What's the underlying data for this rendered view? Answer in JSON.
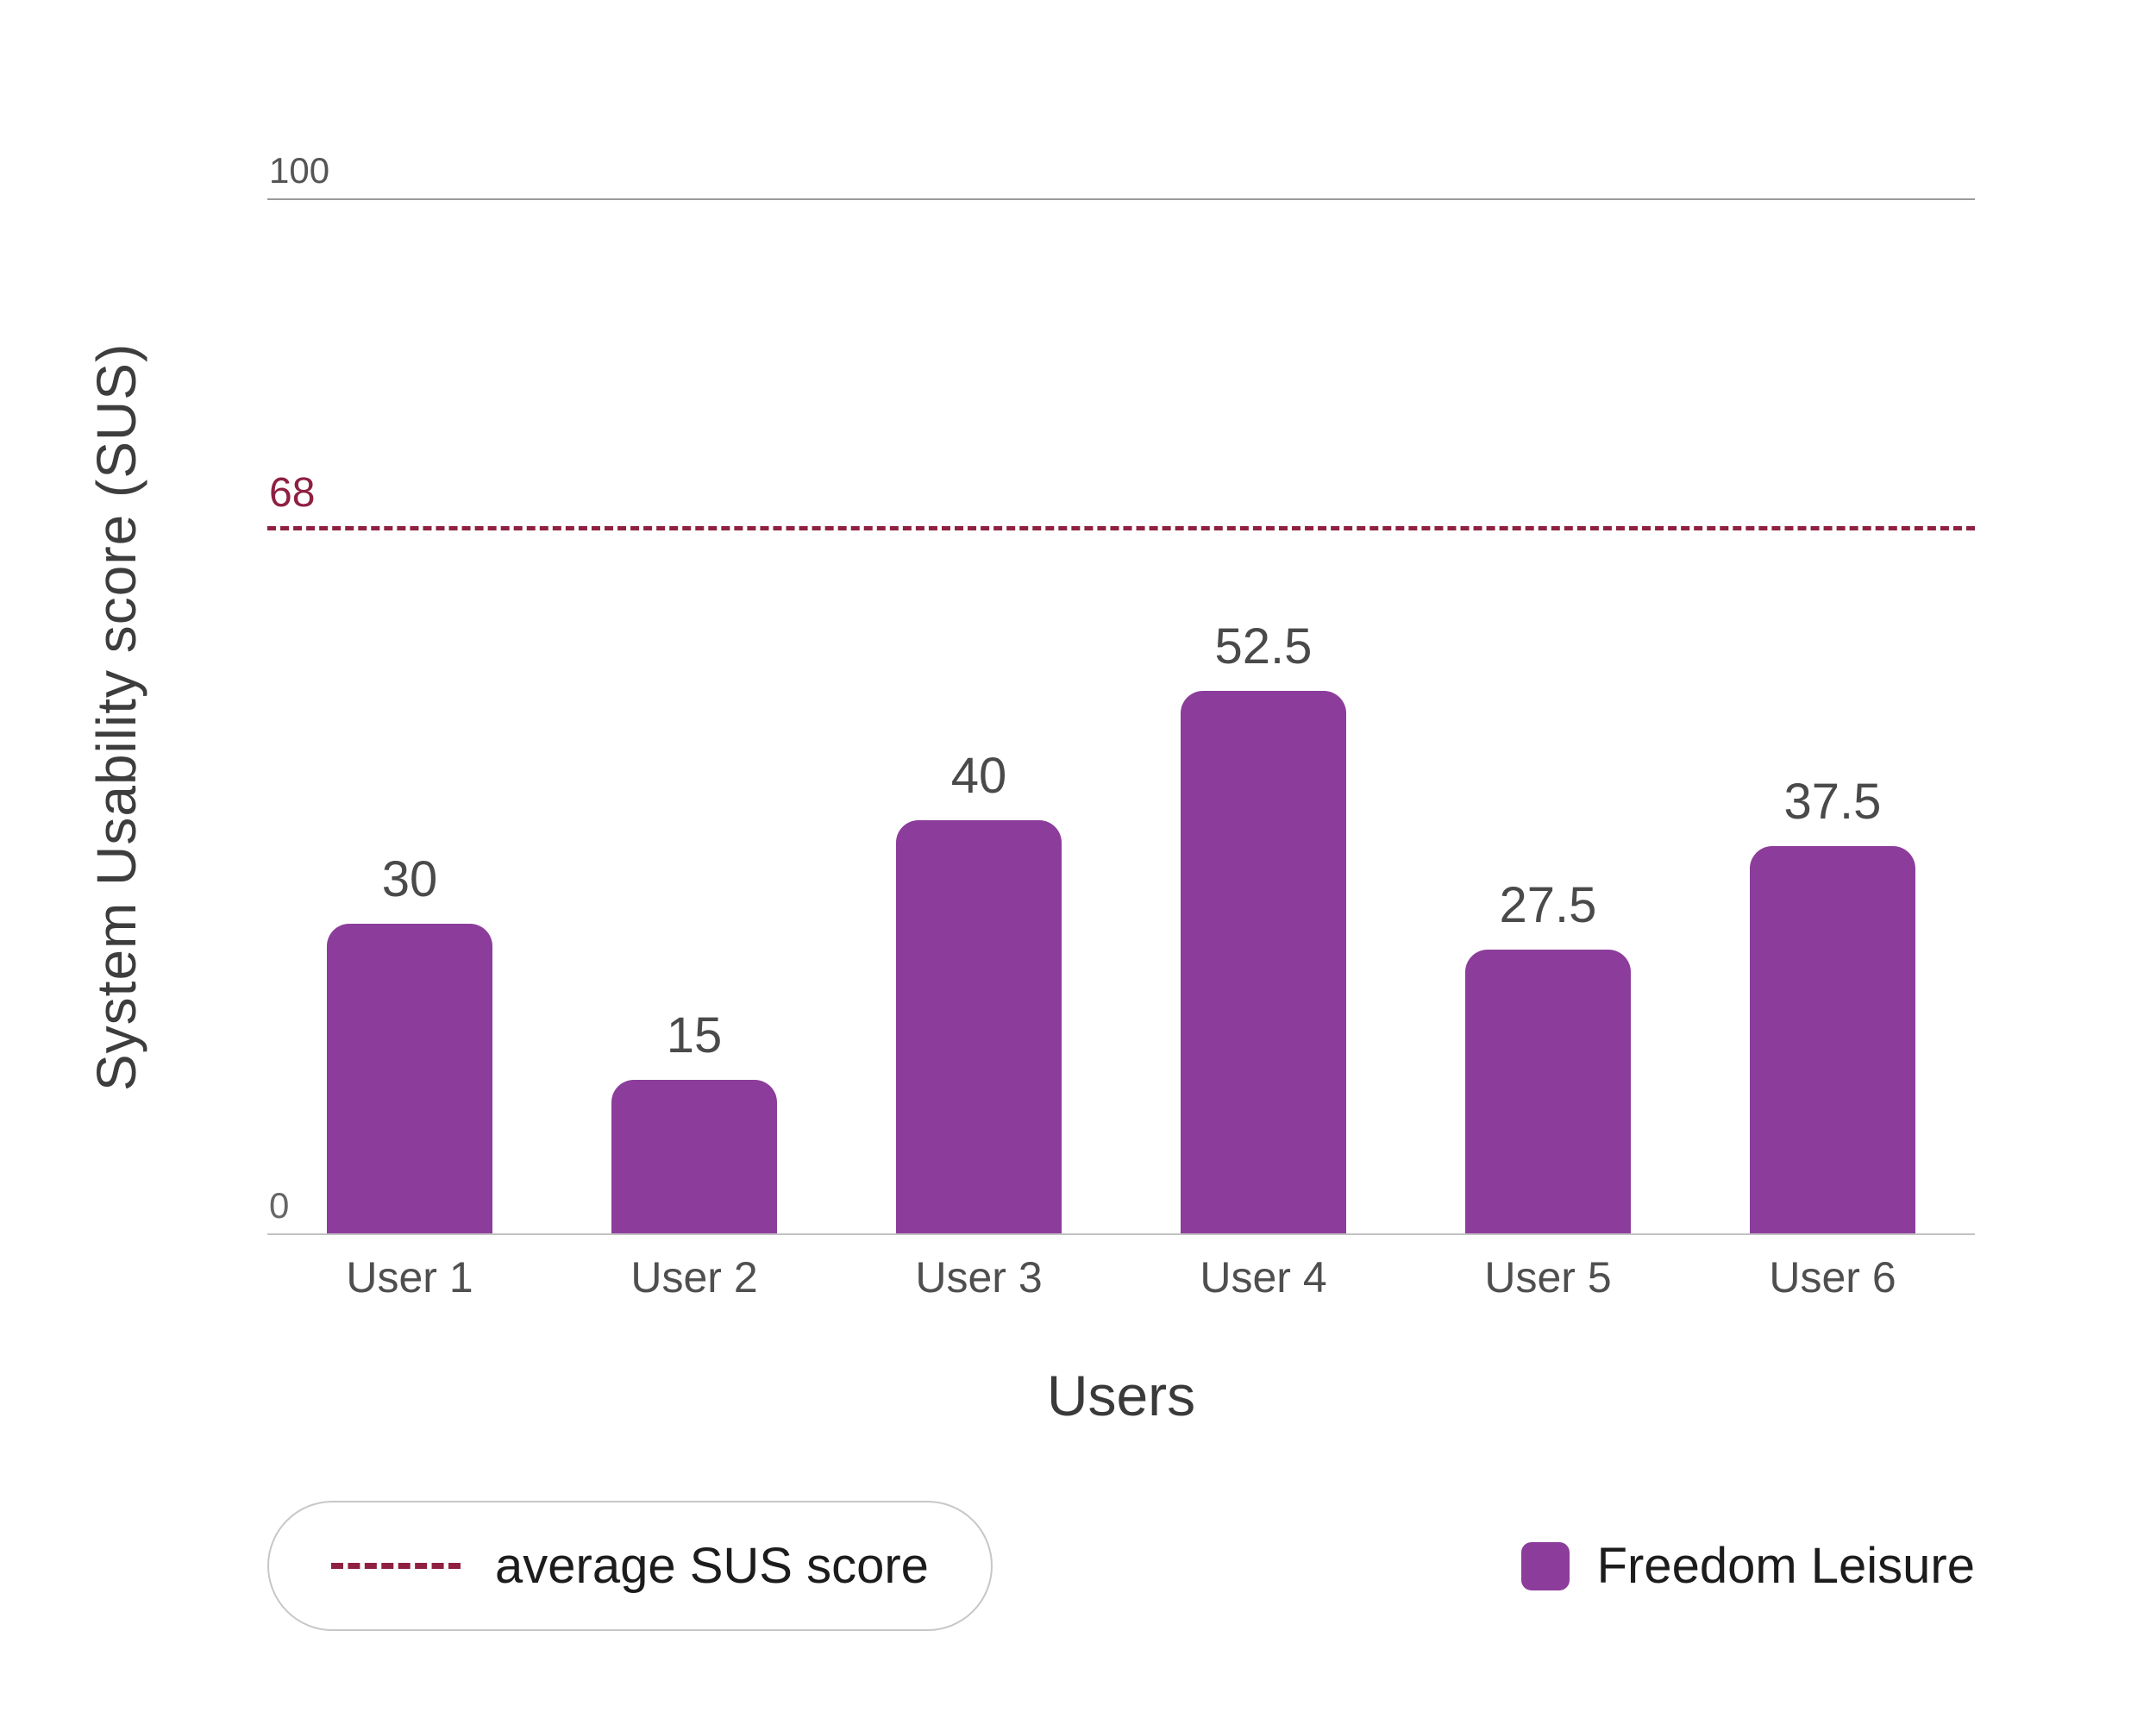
{
  "chart_data": {
    "type": "bar",
    "categories": [
      "User 1",
      "User 2",
      "User 3",
      "User 4",
      "User 5",
      "User 6"
    ],
    "values": [
      30,
      15,
      40,
      52.5,
      27.5,
      37.5
    ],
    "value_labels": [
      "30",
      "15",
      "40",
      "52.5",
      "27.5",
      "37.5"
    ],
    "title": "",
    "xlabel": "Users",
    "ylabel": "System Usability score (SUS)",
    "ylim": [
      0,
      100
    ],
    "y_ticks": [
      0,
      100
    ],
    "grid": "top-line-only",
    "bar_color": "#8C3D9B",
    "reference_line": {
      "value": 68,
      "label": "68",
      "style": "dashed",
      "color": "#8F2041",
      "meaning": "average SUS score"
    },
    "legend_position": "bottom",
    "legend": [
      {
        "label": "average SUS score",
        "swatch": "dashed-line",
        "color": "#8F2041"
      },
      {
        "label": "Freedom Leisure",
        "swatch": "square",
        "color": "#8C3D9B"
      }
    ]
  },
  "axis": {
    "y_title": "System Usability score (SUS)",
    "x_title": "Users",
    "y_max_label": "100",
    "y_min_label": "0",
    "ref_label": "68"
  },
  "legend": {
    "avg_label": "average SUS score",
    "series_label": "Freedom Leisure"
  }
}
